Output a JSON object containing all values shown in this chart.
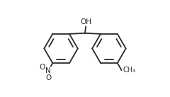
{
  "bg_color": "#ffffff",
  "line_color": "#2a2a2a",
  "line_width": 1.3,
  "oh_label": "OH",
  "n_label": "N",
  "o_label": "O",
  "oh_fontsize": 7.5,
  "no2_fontsize": 7,
  "ch3_fontsize": 7,
  "ch3_label": "CH₃",
  "fig_w": 2.4,
  "fig_h": 1.37,
  "dpi": 100
}
